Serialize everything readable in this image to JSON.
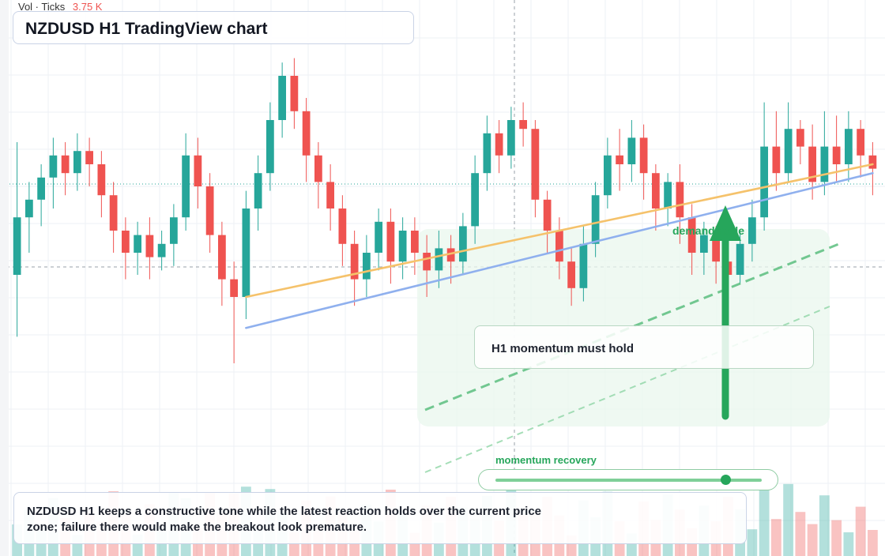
{
  "header": {
    "title": "NZDUSD H1 TradingView chart"
  },
  "volume_label": {
    "prefix": "Vol · Ticks",
    "value": "3.75 K"
  },
  "annotations": {
    "zone_label": "demand node",
    "note": "H1 momentum must hold",
    "slider_label": "momentum recovery",
    "caption": "NZDUSD H1 keeps a constructive tone while the latest reaction holds over the current price zone; failure there would make the breakout look premature."
  },
  "colors": {
    "up": "#26a69a",
    "down": "#ef5350",
    "trend_orange": "#f5c26b",
    "trend_blue": "#8fb0ee",
    "accent_green": "#26a65b"
  },
  "chart_data": {
    "type": "candlestick",
    "symbol": "NZDUSD",
    "timeframe": "H1",
    "title": "NZDUSD H1 TradingView chart",
    "xlabel": "",
    "ylabel": "",
    "price_range": [
      0,
      100
    ],
    "grid": true,
    "candles": [
      [
        45,
        58,
        31,
        75
      ],
      [
        58,
        62,
        50,
        66
      ],
      [
        62,
        67,
        56,
        70
      ],
      [
        67,
        72,
        60,
        76
      ],
      [
        72,
        68,
        63,
        75
      ],
      [
        68,
        73,
        64,
        77
      ],
      [
        73,
        70,
        65,
        76
      ],
      [
        70,
        63,
        58,
        73
      ],
      [
        63,
        55,
        50,
        66
      ],
      [
        55,
        50,
        44,
        58
      ],
      [
        50,
        54,
        45,
        57
      ],
      [
        54,
        49,
        44,
        58
      ],
      [
        49,
        52,
        46,
        55
      ],
      [
        52,
        58,
        47,
        61
      ],
      [
        58,
        72,
        55,
        77
      ],
      [
        72,
        65,
        60,
        76
      ],
      [
        65,
        54,
        50,
        68
      ],
      [
        54,
        44,
        38,
        57
      ],
      [
        44,
        40,
        25,
        48
      ],
      [
        40,
        60,
        35,
        64
      ],
      [
        60,
        68,
        55,
        72
      ],
      [
        68,
        80,
        64,
        84
      ],
      [
        80,
        90,
        76,
        93
      ],
      [
        90,
        82,
        78,
        94
      ],
      [
        82,
        72,
        66,
        85
      ],
      [
        72,
        66,
        60,
        75
      ],
      [
        66,
        60,
        55,
        70
      ],
      [
        60,
        52,
        47,
        63
      ],
      [
        52,
        44,
        38,
        55
      ],
      [
        44,
        50,
        40,
        54
      ],
      [
        50,
        57,
        46,
        60
      ],
      [
        57,
        48,
        43,
        60
      ],
      [
        48,
        55,
        44,
        58
      ],
      [
        55,
        50,
        45,
        58
      ],
      [
        50,
        46,
        40,
        54
      ],
      [
        46,
        51,
        42,
        55
      ],
      [
        51,
        48,
        43,
        54
      ],
      [
        48,
        56,
        45,
        59
      ],
      [
        56,
        68,
        52,
        72
      ],
      [
        68,
        77,
        64,
        81
      ],
      [
        77,
        72,
        68,
        80
      ],
      [
        72,
        80,
        69,
        83
      ],
      [
        80,
        78,
        74,
        84
      ],
      [
        78,
        62,
        58,
        80
      ],
      [
        62,
        55,
        50,
        64
      ],
      [
        55,
        48,
        44,
        58
      ],
      [
        48,
        42,
        38,
        51
      ],
      [
        42,
        52,
        39,
        56
      ],
      [
        52,
        63,
        49,
        66
      ],
      [
        63,
        72,
        60,
        76
      ],
      [
        72,
        70,
        64,
        78
      ],
      [
        70,
        76,
        66,
        80
      ],
      [
        76,
        68,
        62,
        79
      ],
      [
        68,
        60,
        55,
        70
      ],
      [
        60,
        66,
        56,
        68
      ],
      [
        66,
        58,
        52,
        70
      ],
      [
        58,
        50,
        45,
        61
      ],
      [
        50,
        54,
        45,
        57
      ],
      [
        54,
        48,
        43,
        56
      ],
      [
        48,
        45,
        42,
        51
      ],
      [
        45,
        52,
        43,
        55
      ],
      [
        52,
        58,
        48,
        62
      ],
      [
        58,
        74,
        55,
        84
      ],
      [
        74,
        68,
        64,
        82
      ],
      [
        68,
        78,
        66,
        84
      ],
      [
        78,
        74,
        70,
        80
      ],
      [
        74,
        66,
        62,
        79
      ],
      [
        66,
        74,
        63,
        82
      ],
      [
        74,
        70,
        66,
        81
      ],
      [
        70,
        78,
        66,
        82
      ],
      [
        78,
        72,
        67,
        80
      ],
      [
        72,
        69,
        63,
        75
      ]
    ],
    "trendlines": [
      {
        "name": "",
        "color": "#f5c26b",
        "from": [
          19,
          40
        ],
        "to": [
          71,
          70
        ]
      },
      {
        "name": "",
        "color": "#8fb0ee",
        "from": [
          19,
          33
        ],
        "to": [
          71,
          68
        ]
      }
    ],
    "volume": {
      "label": "Vol · Ticks",
      "last": "3.75 K"
    }
  }
}
